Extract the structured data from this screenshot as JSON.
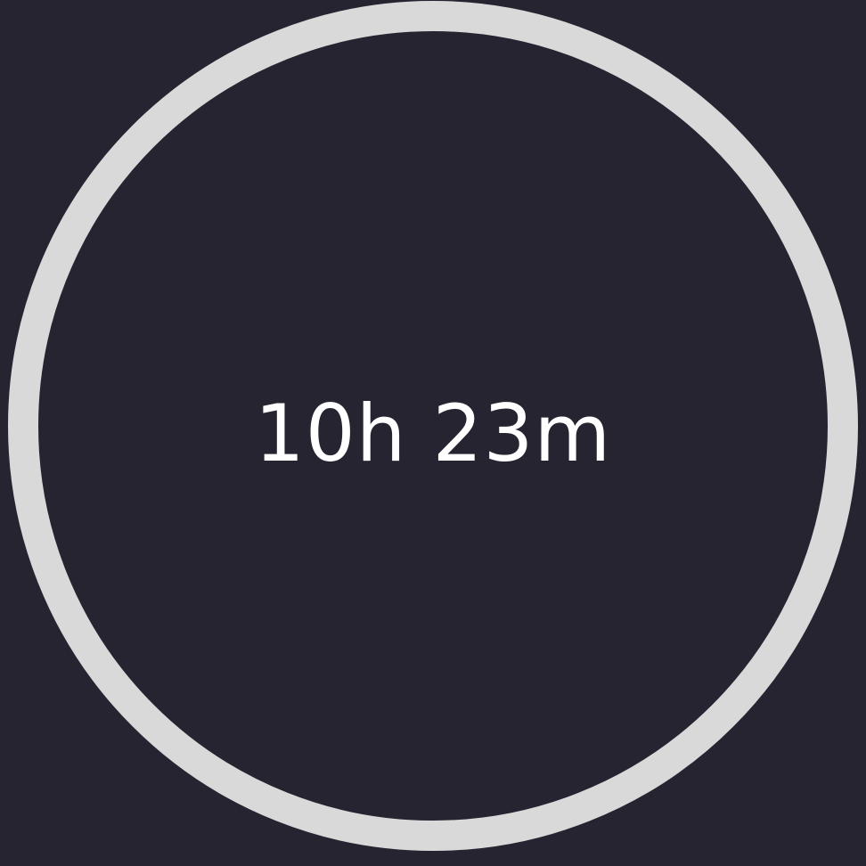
{
  "timer": {
    "display": "10h 23m",
    "ring_color": "#d9d9d9",
    "background_color": "#262430",
    "text_color": "#ffffff"
  }
}
